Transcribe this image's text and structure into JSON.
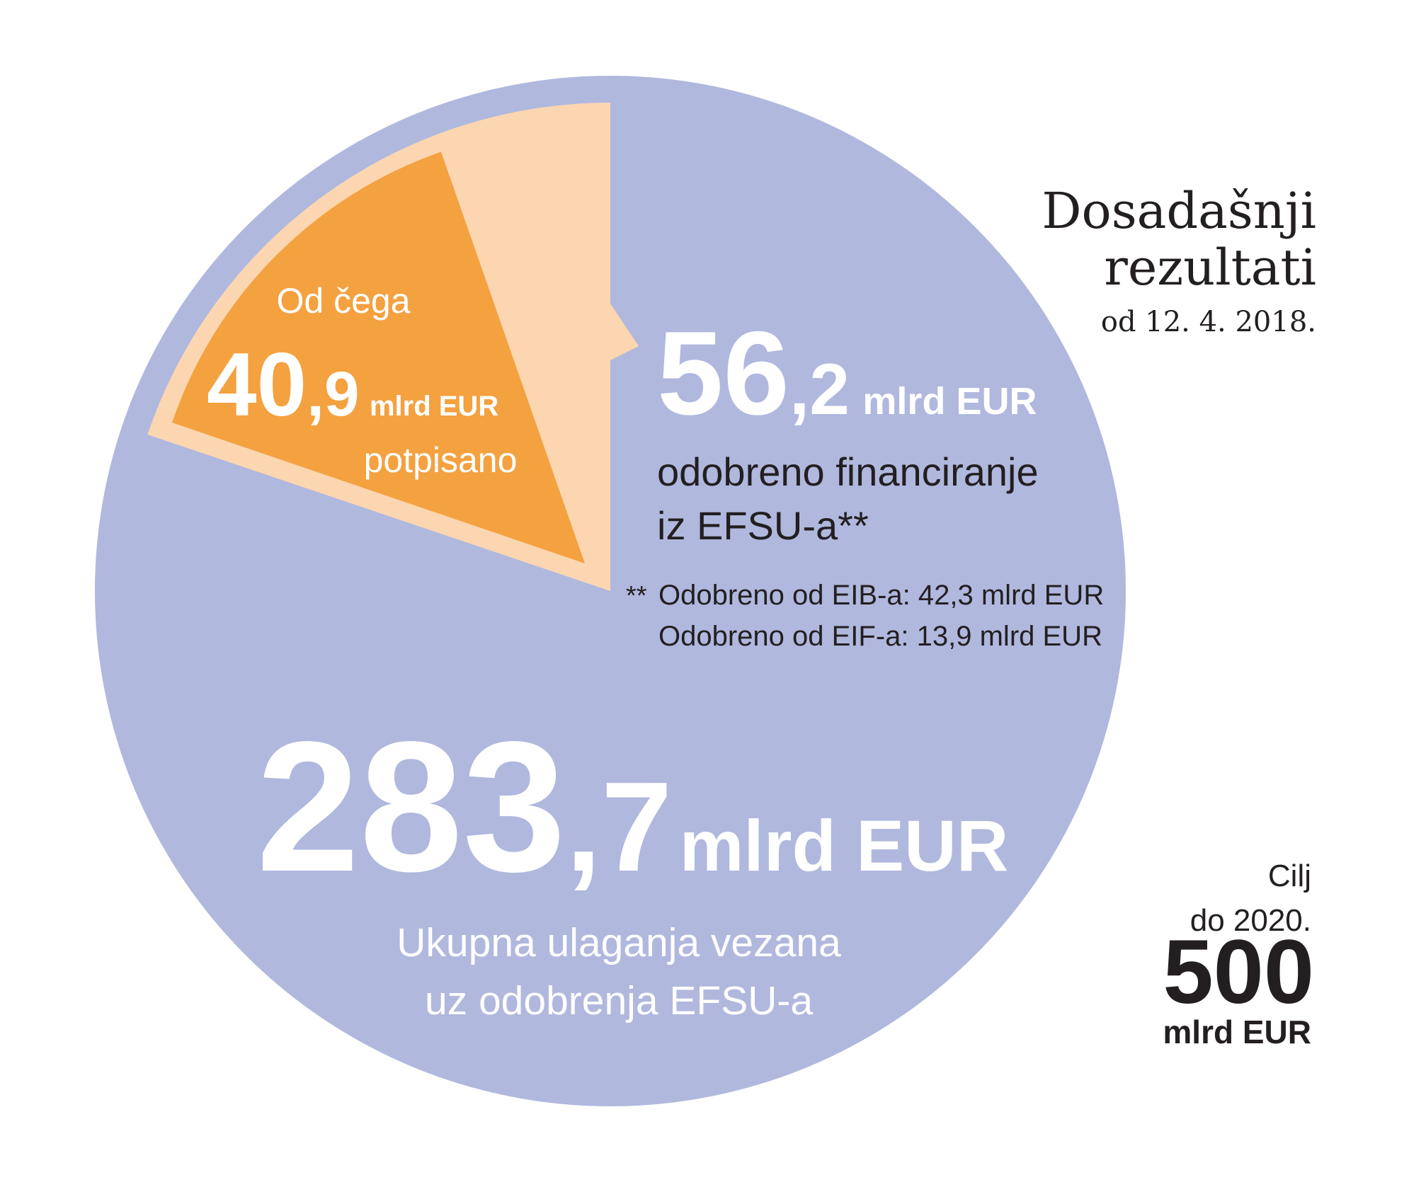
{
  "chart_data": {
    "type": "pie",
    "title": [
      "Dosadašnji",
      "rezultati"
    ],
    "subtitle": "od 12. 4. 2018.",
    "unit": "mlrd EUR",
    "total": {
      "value": 283.7,
      "value_label": "283,7",
      "label_lines": [
        "Ukupna ulaganja vezana",
        "uz odobrenja EFSU-a"
      ],
      "color": "#b0b8de"
    },
    "approved": {
      "value": 56.2,
      "value_label": "56,2",
      "label_lines": [
        "odobreno financiranje",
        "iz EFSU-a**"
      ],
      "color": "#fbd6b0",
      "note_marker": "**",
      "notes": [
        "Odobreno od EIB-a: 42,3 mlrd EUR",
        "Odobreno od EIF-a: 13,9 mlrd EUR"
      ]
    },
    "signed": {
      "prefix": "Od čega",
      "value": 40.9,
      "value_label": "40,9",
      "label": "potpisano",
      "color": "#f4a140"
    },
    "target": {
      "label_lines": [
        "Cilj",
        "do 2020."
      ],
      "value": 500
    }
  }
}
